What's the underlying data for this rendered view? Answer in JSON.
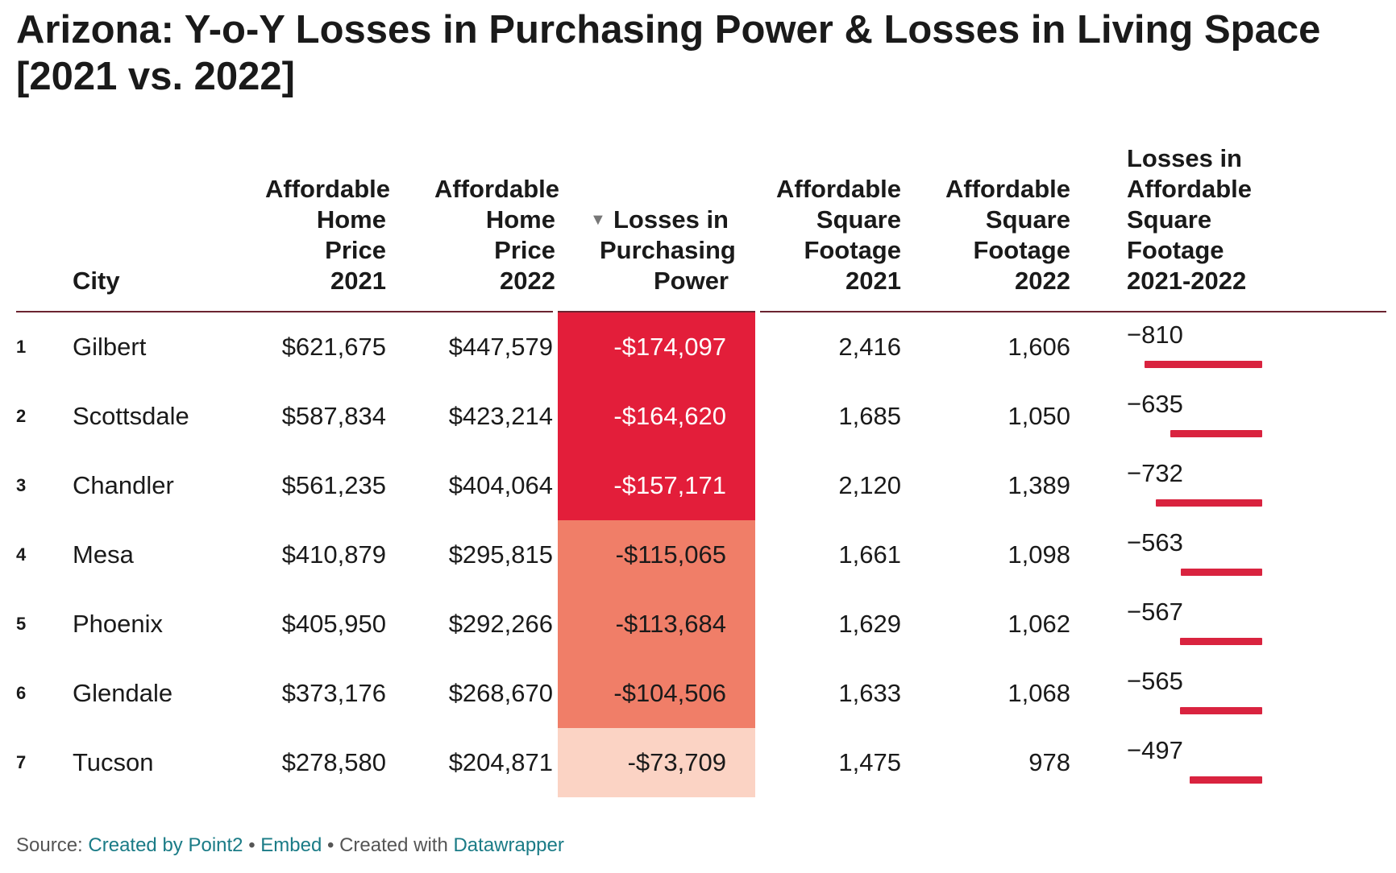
{
  "title": "Arizona: Y-o-Y Losses in Purchasing Power & Losses in Living Space [2021 vs. 2022]",
  "chart_data": {
    "type": "table",
    "title": "Arizona: Y-o-Y Losses in Purchasing Power & Losses in Living Space [2021 vs. 2022]",
    "columns": [
      {
        "key": "rank",
        "label": ""
      },
      {
        "key": "city",
        "label": "City"
      },
      {
        "key": "price_2021",
        "label": "Affordable Home Price 2021"
      },
      {
        "key": "price_2022",
        "label": "Affordable Home Price 2022"
      },
      {
        "key": "loss_power",
        "label": "Losses in Purchasing Power",
        "sort_indicator": "▼"
      },
      {
        "key": "sqft_2021",
        "label": "Affordable Square Footage 2021"
      },
      {
        "key": "sqft_2022",
        "label": "Affordable Square Footage 2022"
      },
      {
        "key": "loss_sqft",
        "label": "Losses in Affordable Square Footage 2021-2022"
      }
    ],
    "rows": [
      {
        "rank": "1",
        "city": "Gilbert",
        "price_2021": "$621,675",
        "price_2022": "$447,579",
        "loss_power": "-$174,097",
        "loss_power_value": -174097,
        "sqft_2021": "2,416",
        "sqft_2022": "1,606",
        "loss_sqft": "−810",
        "loss_sqft_value": -810
      },
      {
        "rank": "2",
        "city": "Scottsdale",
        "price_2021": "$587,834",
        "price_2022": "$423,214",
        "loss_power": "-$164,620",
        "loss_power_value": -164620,
        "sqft_2021": "1,685",
        "sqft_2022": "1,050",
        "loss_sqft": "−635",
        "loss_sqft_value": -635
      },
      {
        "rank": "3",
        "city": "Chandler",
        "price_2021": "$561,235",
        "price_2022": "$404,064",
        "loss_power": "-$157,171",
        "loss_power_value": -157171,
        "sqft_2021": "2,120",
        "sqft_2022": "1,389",
        "loss_sqft": "−732",
        "loss_sqft_value": -732
      },
      {
        "rank": "4",
        "city": "Mesa",
        "price_2021": "$410,879",
        "price_2022": "$295,815",
        "loss_power": "-$115,065",
        "loss_power_value": -115065,
        "sqft_2021": "1,661",
        "sqft_2022": "1,098",
        "loss_sqft": "−563",
        "loss_sqft_value": -563
      },
      {
        "rank": "5",
        "city": "Phoenix",
        "price_2021": "$405,950",
        "price_2022": "$292,266",
        "loss_power": "-$113,684",
        "loss_power_value": -113684,
        "sqft_2021": "1,629",
        "sqft_2022": "1,062",
        "loss_sqft": "−567",
        "loss_sqft_value": -567
      },
      {
        "rank": "6",
        "city": "Glendale",
        "price_2021": "$373,176",
        "price_2022": "$268,670",
        "loss_power": "-$104,506",
        "loss_power_value": -104506,
        "sqft_2021": "1,633",
        "sqft_2022": "1,068",
        "loss_sqft": "−565",
        "loss_sqft_value": -565
      },
      {
        "rank": "7",
        "city": "Tucson",
        "price_2021": "$278,580",
        "price_2022": "$204,871",
        "loss_power": "-$73,709",
        "loss_power_value": -73709,
        "sqft_2021": "1,475",
        "sqft_2022": "978",
        "loss_sqft": "−497",
        "loss_sqft_value": -497
      }
    ]
  },
  "colors": {
    "heat_high": "#e31e3a",
    "heat_mid": "#f07e68",
    "heat_low": "#fbd3c4",
    "text_dark": "#ffffff",
    "text_light": "#1a1a1a",
    "bar": "#d9233f",
    "link": "#1a7b86"
  },
  "footer": {
    "source_label": "Source:",
    "source_link": "Created by Point2",
    "sep1": "•",
    "embed": "Embed",
    "sep2": "•",
    "created_with": "Created with",
    "tool": "Datawrapper"
  }
}
